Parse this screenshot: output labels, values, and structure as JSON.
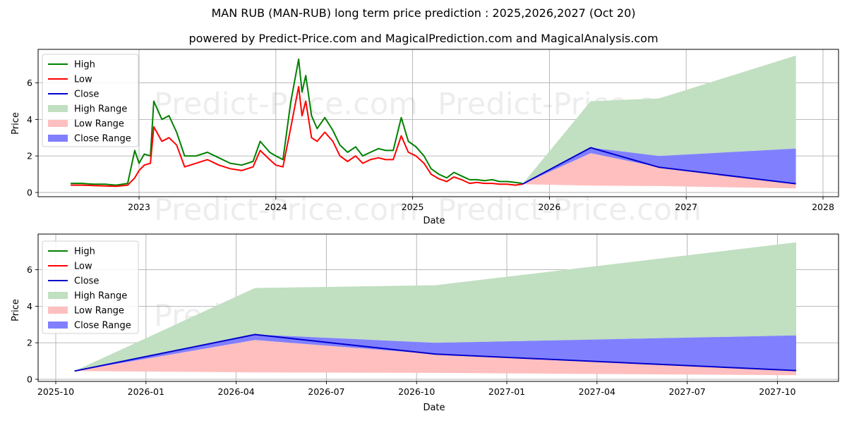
{
  "header": {
    "title": "MAN RUB (MAN-RUB) long term price prediction : 2025,2026,2027 (Oct 20)",
    "subtitle": "powered by Predict-Price.com and MagicalPrediction.com and MagicalAnalysis.com"
  },
  "watermark": "Predict-Price.com",
  "colors": {
    "high": "#008000",
    "low": "#ff0000",
    "close": "#0000cc",
    "high_range": "#c1dfc1",
    "low_range": "#ffbfbf",
    "close_range": "#8080ff"
  },
  "legend": [
    "High",
    "Low",
    "Close",
    "High Range",
    "Low Range",
    "Close Range"
  ],
  "chart_data": [
    {
      "type": "line",
      "title": "MAN RUB (MAN-RUB) long term price prediction : 2025,2026,2027 (Oct 20)",
      "xlabel": "Date",
      "ylabel": "Price",
      "xticks": [
        "2023",
        "2024",
        "2025",
        "2026",
        "2027",
        "2028"
      ],
      "yticks": [
        "0",
        "2",
        "4",
        "6"
      ],
      "ylim": [
        0,
        7.7
      ],
      "xlim": [
        "2022-05",
        "2028-01"
      ],
      "grid": true,
      "legend_position": "upper left",
      "history": {
        "x": [
          "2022-07-01",
          "2022-08-01",
          "2022-09-01",
          "2022-10-01",
          "2022-11-01",
          "2022-12-01",
          "2022-12-20",
          "2023-01-01",
          "2023-01-15",
          "2023-02-01",
          "2023-02-10",
          "2023-03-01",
          "2023-03-20",
          "2023-04-10",
          "2023-05-01",
          "2023-06-01",
          "2023-07-01",
          "2023-08-01",
          "2023-09-01",
          "2023-10-01",
          "2023-11-01",
          "2023-11-20",
          "2023-12-15",
          "2024-01-01",
          "2024-01-20",
          "2024-02-10",
          "2024-03-01",
          "2024-03-10",
          "2024-03-20",
          "2024-04-05",
          "2024-04-20",
          "2024-05-10",
          "2024-06-01",
          "2024-06-20",
          "2024-07-10",
          "2024-08-01",
          "2024-08-20",
          "2024-09-10",
          "2024-10-01",
          "2024-10-20",
          "2024-11-10",
          "2024-12-01",
          "2024-12-20",
          "2025-01-10",
          "2025-02-01",
          "2025-02-20",
          "2025-03-10",
          "2025-04-01",
          "2025-04-20",
          "2025-05-10",
          "2025-06-01",
          "2025-06-20",
          "2025-07-10",
          "2025-08-01",
          "2025-08-20",
          "2025-09-10",
          "2025-10-01",
          "2025-10-20"
        ],
        "high": [
          0.5,
          0.5,
          0.45,
          0.45,
          0.4,
          0.5,
          2.3,
          1.6,
          2.1,
          2.0,
          5.0,
          4.0,
          4.2,
          3.3,
          2.0,
          2.0,
          2.2,
          1.9,
          1.6,
          1.5,
          1.7,
          2.8,
          2.2,
          2.0,
          1.8,
          4.9,
          7.3,
          5.5,
          6.4,
          4.2,
          3.5,
          4.1,
          3.4,
          2.6,
          2.2,
          2.5,
          2.0,
          2.2,
          2.4,
          2.3,
          2.3,
          4.1,
          2.8,
          2.5,
          2.0,
          1.3,
          1.0,
          0.8,
          1.1,
          0.9,
          0.7,
          0.7,
          0.65,
          0.7,
          0.6,
          0.6,
          0.55,
          0.5
        ],
        "low": [
          0.4,
          0.4,
          0.38,
          0.36,
          0.34,
          0.4,
          0.8,
          1.2,
          1.5,
          1.6,
          3.6,
          2.8,
          3.0,
          2.6,
          1.4,
          1.6,
          1.8,
          1.5,
          1.3,
          1.2,
          1.4,
          2.3,
          1.8,
          1.5,
          1.4,
          3.5,
          5.8,
          4.2,
          5.0,
          3.0,
          2.8,
          3.3,
          2.8,
          2.0,
          1.7,
          2.0,
          1.6,
          1.8,
          1.9,
          1.8,
          1.8,
          3.1,
          2.2,
          2.0,
          1.6,
          1.0,
          0.75,
          0.6,
          0.85,
          0.7,
          0.5,
          0.55,
          0.5,
          0.5,
          0.45,
          0.45,
          0.4,
          0.45
        ]
      },
      "forecast": {
        "x": [
          "2025-10-20",
          "2026-04-20",
          "2026-10-20",
          "2027-10-20"
        ],
        "close": [
          0.45,
          2.45,
          1.38,
          0.48
        ],
        "high_range_upper": [
          0.45,
          5.0,
          5.15,
          7.5
        ],
        "high_range_lower": [
          0.45,
          2.45,
          2.0,
          2.4
        ],
        "close_range_upper": [
          0.45,
          2.45,
          2.0,
          2.4
        ],
        "close_range_lower": [
          0.45,
          2.15,
          1.38,
          0.48
        ],
        "low_range_upper": [
          0.45,
          2.15,
          1.38,
          0.48
        ],
        "low_range_lower": [
          0.45,
          0.38,
          0.35,
          0.22
        ]
      }
    },
    {
      "type": "area",
      "title": "",
      "xlabel": "Date",
      "ylabel": "Price",
      "xticks": [
        "2025-10",
        "2026-01",
        "2026-04",
        "2026-07",
        "2026-10",
        "2027-01",
        "2027-04",
        "2027-07",
        "2027-10"
      ],
      "yticks": [
        "0",
        "2",
        "4",
        "6"
      ],
      "ylim": [
        0,
        7.7
      ],
      "grid": true,
      "legend_position": "upper left",
      "x": [
        "2025-10-20",
        "2026-04-20",
        "2026-10-20",
        "2027-10-20"
      ],
      "series": [
        {
          "name": "Close",
          "values": [
            0.45,
            2.45,
            1.38,
            0.48
          ]
        },
        {
          "name": "High Range",
          "upper": [
            0.45,
            5.0,
            5.15,
            7.5
          ],
          "lower": [
            0.45,
            2.45,
            2.0,
            2.4
          ]
        },
        {
          "name": "Close Range",
          "upper": [
            0.45,
            2.45,
            2.0,
            2.4
          ],
          "lower": [
            0.45,
            2.15,
            1.38,
            0.48
          ]
        },
        {
          "name": "Low Range",
          "upper": [
            0.45,
            2.15,
            1.38,
            0.48
          ],
          "lower": [
            0.45,
            0.38,
            0.35,
            0.22
          ]
        }
      ]
    }
  ]
}
